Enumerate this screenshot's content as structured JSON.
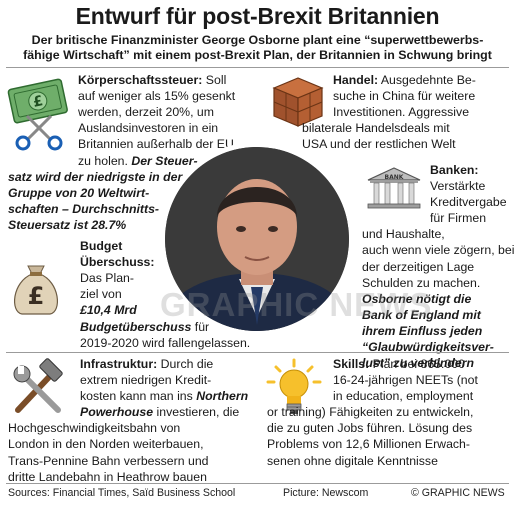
{
  "header": {
    "title": "Entwurf für post-Brexit Britannien",
    "subtitle_line1": "Der britische Finanzminister George Osborne plant eine “superwettbewerbs-",
    "subtitle_line2": "fähige Wirtschaft” mit einem post-Brexit Plan, der Britannien in Schwung bringt"
  },
  "koerperschaftssteuer": {
    "heading": "Körperschaftssteuer:",
    "l1_rest": " Soll",
    "l2": "auf weniger als 15% gesenkt",
    "l3": "werden, derzeit 20%, um",
    "l4": "Auslandsinvestoren in ein",
    "l5": "Britannien außerhalb der EU",
    "l6_plain": "zu holen. ",
    "l6_emph": "Der Steuer-",
    "l7": "satz wird der niedrigste in der",
    "l8": "Gruppe von 20 Weltwirt-",
    "l9": "schaften – Durchschnitts-",
    "l10": "Steuersatz ist  28.7%"
  },
  "handel": {
    "heading": "Handel:",
    "l1_rest": " Ausgedehnte Be-",
    "l2": "suche in China für weitere",
    "l3": "Investitionen. Aggressive",
    "l4": "bilaterale Handelsdeals mit",
    "l5": "USA und der restlichen Welt"
  },
  "banken": {
    "heading": "Banken:",
    "l1": "Verstärkte",
    "l2": "Kreditvergabe",
    "l3": "für Firmen",
    "l4": "und Haushalte,",
    "l5": "auch wenn viele zögern, bei",
    "l6": "der derzeitigen Lage",
    "l7": "Schulden zu machen.",
    "e1": "Osborne nötigt die",
    "e2": "Bank of England mit",
    "e3": "ihrem Einfluss jeden",
    "e4": "“Glaubwürdigkeitsver-",
    "e5": "lust” zu verhindern"
  },
  "budget": {
    "h1": "Budget",
    "h2": "Überschuss:",
    "l1": "Das Plan-",
    "l2": "ziel von",
    "e1": "£10,4 Mrd",
    "e2": "Budgetüberschuss",
    "l3_rest": " für",
    "l4": "2019-2020 wird fallengelassen."
  },
  "infrastruktur": {
    "heading": "Infrastruktur:",
    "l1_rest": " Durch die",
    "l2": "extrem niedrigen Kredit-",
    "l3": "kosten kann man ins ",
    "l3_emph": "Northern",
    "l4_emph": "Powerhouse",
    "l4_rest": " investieren, die",
    "l5": "Hochgeschwindigkeitsbahn von",
    "l6": "London in den Norden weiterbauen,",
    "l7": "Trans-Pennine Bahn verbessern und",
    "l8": "dritte Landebahn in Heathrow bauen"
  },
  "skills": {
    "heading": "Skills:",
    "l1_rest": " Plan bei 865.000",
    "l2": "16-24-jährigen NEETs (not",
    "l3": "in education, employment",
    "l4": "or training) Fähigkeiten zu entwickeln,",
    "l5": "die zu guten Jobs führen. Lösung des",
    "l6": "Problems von 12,6 Millionen Erwach-",
    "l7": "senen ohne digitale Kenntnisse"
  },
  "watermark": "GRAPHIC NEWS",
  "footer": {
    "sources": "Sources: Financial Times, Saïd Business School",
    "picture": "Picture: Newscom",
    "copyright": "© GRAPHIC NEWS"
  },
  "icons": {
    "corporate_tax": "banknote-scissors-icon",
    "trade": "shipping-crate-icon",
    "banks": "bank-building-icon",
    "budget": "money-bag-icon",
    "infrastructure": "hammer-wrench-icon",
    "skills": "lightbulb-icon"
  },
  "colors": {
    "text": "#1a1a1a",
    "rule": "#9b9b9b",
    "note_green": "#6fae6a",
    "crate_brown": "#a0522d",
    "bulb_yellow": "#f6c02c"
  }
}
